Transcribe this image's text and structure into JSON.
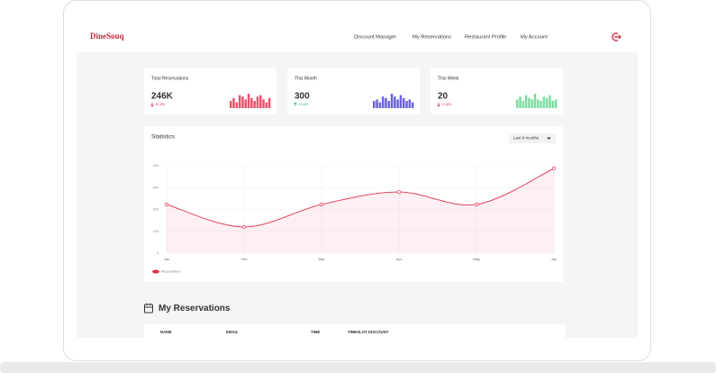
{
  "header": {
    "logo": "DineSouq",
    "nav": [
      "Discount Manager",
      "My Reservations",
      "Restaurant Profile",
      "My Account"
    ]
  },
  "stats": [
    {
      "title": "Total Reservations",
      "value": "246K",
      "change": "61.8%",
      "direction": "down",
      "color": "#f0506e",
      "bars": [
        5,
        7,
        4,
        9,
        8,
        6,
        10,
        7,
        5,
        8,
        9,
        6,
        4,
        7
      ]
    },
    {
      "title": "This Month",
      "value": "300",
      "change": "13.8%",
      "direction": "up",
      "color": "#6c63e0",
      "bars": [
        5,
        6,
        4,
        8,
        7,
        5,
        10,
        8,
        6,
        9,
        7,
        5,
        6,
        4
      ]
    },
    {
      "title": "This Week",
      "value": "20",
      "change": "19.8%",
      "direction": "down",
      "color": "#7ddca0",
      "bars": [
        6,
        8,
        5,
        9,
        7,
        6,
        10,
        6,
        5,
        8,
        7,
        9,
        5,
        6
      ]
    }
  ],
  "chart_data": {
    "type": "line",
    "title": "Statistics",
    "filter": "Last 6 months",
    "categories": [
      "Jan",
      "Feb",
      "Mar",
      "Apr",
      "May",
      "Jun"
    ],
    "series": [
      {
        "name": "Reservations",
        "color": "#e0304e",
        "values": [
          223,
          120,
          223,
          280,
          223,
          388
        ]
      }
    ],
    "ylim": [
      0,
      400
    ],
    "yticks": [
      0,
      100,
      200,
      300,
      400
    ],
    "grid": true
  },
  "reservations": {
    "title": "My Reservations",
    "columns": [
      "NAME",
      "EMAIL",
      "TIME",
      "TIMESLOT DISCOUNT"
    ]
  }
}
